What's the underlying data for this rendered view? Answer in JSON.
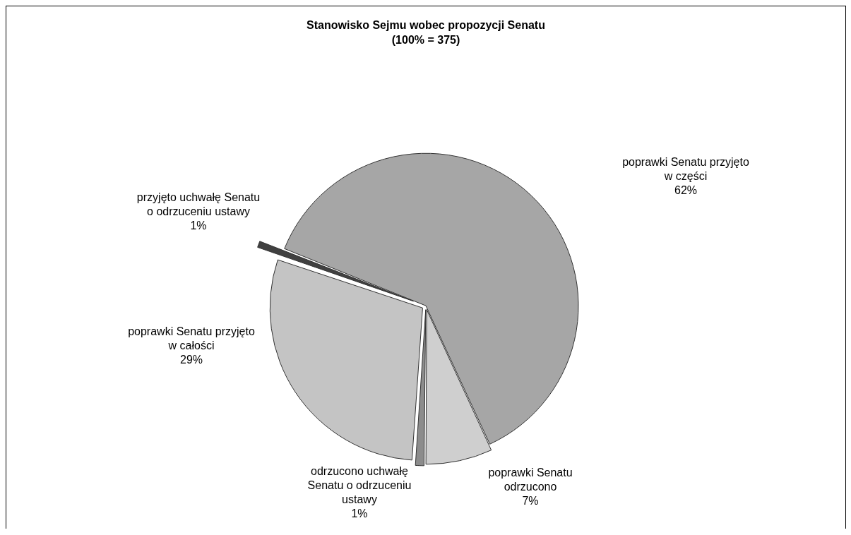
{
  "chart_data": {
    "type": "pie",
    "title": "Stanowisko Sejmu wobec propozycji Senatu",
    "subtitle": "(100% = 375)",
    "categories": [
      "poprawki Senatu przyjęto w części",
      "poprawki Senatu odrzucono",
      "odrzucono uchwałę Senatu o odrzuceniu ustawy",
      "poprawki Senatu przyjęto w całości",
      "przyjęto uchwałę Senatu o odrzuceniu ustawy"
    ],
    "values": [
      62,
      7,
      1,
      29,
      1
    ],
    "colors": [
      "#a6a6a6",
      "#cfcfcf",
      "#8c8c8c",
      "#c4c4c4",
      "#404040"
    ],
    "value_labels": [
      "62%",
      "7%",
      "1%",
      "29%",
      "1%"
    ],
    "legend": false
  }
}
